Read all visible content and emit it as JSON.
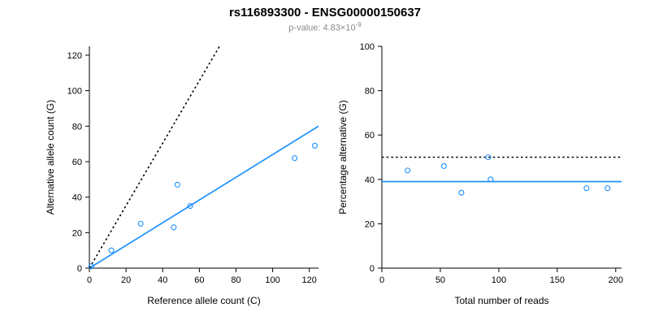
{
  "header": {
    "title": "rs116893300 - ENSG00000150637",
    "pvalue_prefix": "p-value: ",
    "pvalue_mantissa": "4.83×10",
    "pvalue_exponent": "-9"
  },
  "chart_data": [
    {
      "type": "scatter",
      "title": "",
      "xlabel": "Reference allele count (C)",
      "ylabel": "Alternative allele count (G)",
      "xlim": [
        0,
        125
      ],
      "ylim": [
        0,
        125
      ],
      "xticks": [
        0,
        20,
        40,
        60,
        80,
        100,
        120
      ],
      "yticks": [
        0,
        20,
        40,
        60,
        80,
        100,
        120
      ],
      "grid": false,
      "point_color": "#1E90FF",
      "points": [
        [
          1,
          1
        ],
        [
          12,
          10
        ],
        [
          28,
          25
        ],
        [
          46,
          23
        ],
        [
          48,
          47
        ],
        [
          55,
          35
        ],
        [
          112,
          62
        ],
        [
          123,
          69
        ]
      ],
      "lines": [
        {
          "name": "fit-line",
          "style": "solid",
          "color": "#1E90FF",
          "from": [
            0,
            0
          ],
          "to": [
            125,
            80
          ]
        },
        {
          "name": "expected-ratio-line",
          "style": "dotted",
          "color": "#000000",
          "from": [
            0,
            0
          ],
          "to": [
            71,
            125
          ]
        }
      ]
    },
    {
      "type": "scatter",
      "title": "",
      "xlabel": "Total number of reads",
      "ylabel": "Percentage alternative (G)",
      "xlim": [
        0,
        205
      ],
      "ylim": [
        0,
        100
      ],
      "xticks": [
        0,
        50,
        100,
        150,
        200
      ],
      "yticks": [
        0,
        20,
        40,
        60,
        80,
        100
      ],
      "grid": false,
      "point_color": "#1E90FF",
      "points": [
        [
          22,
          44
        ],
        [
          53,
          46
        ],
        [
          68,
          34
        ],
        [
          91,
          50
        ],
        [
          93,
          40
        ],
        [
          175,
          36
        ],
        [
          193,
          36
        ]
      ],
      "lines": [
        {
          "name": "mean-percentage-line",
          "style": "solid",
          "color": "#1E90FF",
          "from": [
            0,
            39
          ],
          "to": [
            205,
            39
          ]
        },
        {
          "name": "expected-50pct-line",
          "style": "dotted",
          "color": "#000000",
          "from": [
            0,
            50
          ],
          "to": [
            205,
            50
          ]
        }
      ]
    }
  ]
}
